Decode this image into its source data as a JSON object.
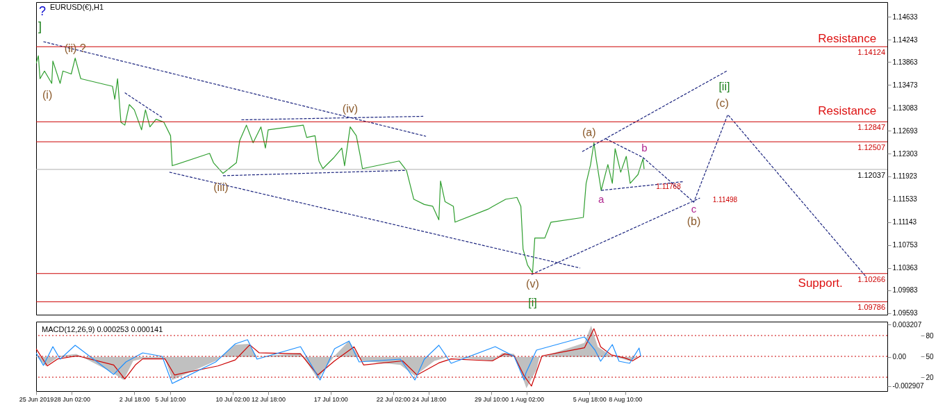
{
  "chart_data": [
    {
      "type": "line",
      "title": "EURUSD(€),H1",
      "xlim": [
        "2019-06-25T10:00",
        "2019-08-28T00:00"
      ],
      "ylim": [
        1.09566,
        1.14883
      ],
      "yticks": [
        1.14633,
        1.14243,
        1.13863,
        1.13473,
        1.13083,
        1.12693,
        1.12303,
        1.11923,
        1.11533,
        1.11143,
        1.10753,
        1.10363,
        1.09983,
        1.09593
      ],
      "tick_labels": "y",
      "grid": false,
      "series": [
        {
          "color": "#2e9e2e",
          "x": [
            "2019-06-25T10:00",
            "2019-06-25T14:00",
            "2019-06-25T17:00",
            "2019-06-26T01:00",
            "2019-06-26T14:00",
            "2019-06-26T16:00",
            "2019-06-27T05:00",
            "2019-06-27T10:00",
            "2019-06-28T01:00",
            "2019-06-28T08:00",
            "2019-06-28T18:00",
            "2019-07-01T03:00",
            "2019-07-01T07:00",
            "2019-07-01T12:00",
            "2019-07-01T18:00",
            "2019-07-02T01:00",
            "2019-07-02T09:00",
            "2019-07-02T18:00",
            "2019-07-03T07:00",
            "2019-07-03T14:00",
            "2019-07-03T22:00",
            "2019-07-04T09:00",
            "2019-07-04T23:00",
            "2019-07-05T11:00",
            "2019-07-05T14:00",
            "2019-07-08T09:00",
            "2019-07-08T16:00",
            "2019-07-09T09:00",
            "2019-07-10T09:00",
            "2019-07-10T15:00",
            "2019-07-11T03:00",
            "2019-07-11T15:00",
            "2019-07-12T05:00",
            "2019-07-12T13:00",
            "2019-07-12T18:00",
            "2019-07-15T09:00",
            "2019-07-15T15:00",
            "2019-07-16T06:00",
            "2019-07-16T13:00",
            "2019-07-16T20:00",
            "2019-07-17T15:00",
            "2019-07-18T06:00",
            "2019-07-18T11:00",
            "2019-07-18T21:00",
            "2019-07-19T08:00",
            "2019-07-19T15:00",
            "2019-07-19T19:00",
            "2019-07-22T13:00",
            "2019-07-23T02:00",
            "2019-07-23T15:00",
            "2019-07-24T10:00",
            "2019-07-25T01:00",
            "2019-07-25T12:00",
            "2019-07-25T15:00",
            "2019-07-25T23:00",
            "2019-07-26T14:00",
            "2019-07-26T17:00",
            "2019-07-29T04:00",
            "2019-07-29T13:00",
            "2019-07-30T12:00",
            "2019-07-31T08:00",
            "2019-07-31T15:00",
            "2019-07-31T19:00",
            "2019-08-01T03:00",
            "2019-08-01T12:00",
            "2019-08-01T16:00",
            "2019-08-02T10:00",
            "2019-08-02T21:00",
            "2019-08-05T07:00",
            "2019-08-05T12:00",
            "2019-08-05T20:00",
            "2019-08-06T02:00",
            "2019-08-06T06:00",
            "2019-08-06T15:00",
            "2019-08-07T03:00",
            "2019-08-07T11:00",
            "2019-08-07T16:00",
            "2019-08-08T02:00",
            "2019-08-08T12:00",
            "2019-08-08T19:00",
            "2019-08-09T09:00",
            "2019-08-09T18:00",
            "2019-08-09T20:00"
          ],
          "values": [
            1.1384,
            1.1397,
            1.1358,
            1.1371,
            1.135,
            1.1388,
            1.135,
            1.1371,
            1.1366,
            1.1393,
            1.1358,
            1.1345,
            1.1323,
            1.1358,
            1.1284,
            1.1279,
            1.1314,
            1.1305,
            1.1271,
            1.1305,
            1.1276,
            1.1289,
            1.1284,
            1.1261,
            1.121,
            1.1231,
            1.1215,
            1.1197,
            1.1215,
            1.1253,
            1.1279,
            1.1249,
            1.1276,
            1.124,
            1.1271,
            1.1279,
            1.1258,
            1.1261,
            1.1218,
            1.1205,
            1.1223,
            1.124,
            1.121,
            1.1276,
            1.1261,
            1.1227,
            1.1205,
            1.1218,
            1.1202,
            1.1153,
            1.1144,
            1.1141,
            1.1118,
            1.1184,
            1.1149,
            1.1141,
            1.1114,
            1.1136,
            1.1141,
            1.1153,
            1.1156,
            1.1141,
            1.1068,
            1.1041,
            1.1028,
            1.1087,
            1.1087,
            1.1114,
            1.1122,
            1.118,
            1.1212,
            1.1249,
            1.1222,
            1.1168,
            1.1212,
            1.118,
            1.1239,
            1.1199,
            1.1226,
            1.118,
            1.1195,
            1.1222,
            1.1204
          ]
        },
        {
          "type": "line",
          "line_style": "dashed",
          "color": "#1a237e",
          "x": [
            "2019-06-25T23:00",
            "2019-07-24T13:00"
          ],
          "values": [
            1.1421,
            1.126
          ]
        },
        {
          "type": "line",
          "line_style": "dashed",
          "color": "#1a237e",
          "x": [
            "2019-07-02T01:00",
            "2019-07-04T20:00"
          ],
          "values": [
            1.1334,
            1.1292
          ]
        },
        {
          "type": "line",
          "line_style": "dashed",
          "color": "#1a237e",
          "x": [
            "2019-07-05T09:00",
            "2019-08-05T01:00"
          ],
          "values": [
            1.1199,
            1.1036
          ]
        },
        {
          "type": "line",
          "line_style": "dashed",
          "color": "#1a237e",
          "x": [
            "2019-07-10T18:00",
            "2019-07-24T08:00"
          ],
          "values": [
            1.1288,
            1.1294
          ]
        },
        {
          "type": "line",
          "line_style": "dashed",
          "color": "#1a237e",
          "x": [
            "2019-07-09T09:00",
            "2019-07-22T23:00"
          ],
          "values": [
            1.1193,
            1.1202
          ]
        },
        {
          "type": "line",
          "line_style": "dashed",
          "color": "#1a237e",
          "x": [
            "2019-08-01T10:00",
            "2019-08-14T00:00"
          ],
          "values": [
            1.1025,
            1.1155
          ]
        },
        {
          "type": "line",
          "line_style": "dashed",
          "color": "#1a237e",
          "x": [
            "2019-08-05T05:00",
            "2019-08-16T00:00"
          ],
          "values": [
            1.1234,
            1.1371
          ]
        },
        {
          "type": "line",
          "line_style": "dashed",
          "color": "#1a237e",
          "x": [
            "2019-08-06T15:00",
            "2019-08-12T19:00"
          ],
          "values": [
            1.1168,
            1.1183
          ]
        },
        {
          "type": "line",
          "line_style": "dashed",
          "color": "#1a237e",
          "x": [
            "2019-08-06T23:00",
            "2019-08-09T18:00",
            "2019-08-13T13:00",
            "2019-08-16T02:00",
            "2019-08-26T10:00"
          ],
          "values": [
            1.1256,
            1.1224,
            1.1148,
            1.1297,
            1.1021
          ]
        }
      ],
      "ref_lines": [
        {
          "axis": "y",
          "value": 1.14124,
          "label": "1.14124",
          "color": "#cc0000"
        },
        {
          "axis": "y",
          "value": 1.12847,
          "label": "1.12847",
          "color": "#cc0000"
        },
        {
          "axis": "y",
          "value": 1.12507,
          "label": "1.12507",
          "color": "#cc0000"
        },
        {
          "axis": "y",
          "value": 1.12037,
          "label": "1.12037",
          "color": "#b0b0b0"
        },
        {
          "axis": "y",
          "value": 1.10266,
          "label": "1.10266",
          "color": "#cc0000"
        },
        {
          "axis": "y",
          "value": 1.09786,
          "label": "1.09786",
          "color": "#cc0000"
        }
      ],
      "annotations": [
        "?",
        "]",
        "(i)",
        {
          "text": "(ii) ?",
          "x": "2019-06-28T08:00",
          "y": 1.1393
        },
        {
          "text": "(iii)",
          "x": "2019-07-09T09:00",
          "y": 1.1197
        },
        {
          "text": "(iv)",
          "x": "2019-07-18T21:00",
          "y": 1.1276
        },
        {
          "text": "(v)",
          "x": "2019-08-01T12:00",
          "y": 1.1028
        },
        {
          "text": "[i]",
          "x": "2019-08-01T12:00",
          "y": 1.1028
        },
        {
          "text": "(a)",
          "x": "2019-08-06T02:00",
          "y": 1.1249
        },
        {
          "text": "a",
          "x": "2019-08-06T15:00",
          "y": 1.1168
        },
        {
          "text": "b",
          "x": "2019-08-09T18:00",
          "y": 1.1222
        },
        {
          "text": "c",
          "x": "2019-08-13T13:00",
          "y": 1.1148
        },
        {
          "text": "(b)",
          "x": "2019-08-13T13:00",
          "y": 1.1148
        },
        {
          "text": "(c)",
          "x": "2019-08-16T02:00",
          "y": 1.1297
        },
        {
          "text": "[ii]",
          "x": "2019-08-16T02:00",
          "y": 1.1297
        },
        {
          "text": "1.11768",
          "x": "2019-08-12T19:00",
          "y": 1.1183
        },
        {
          "text": "1.11498",
          "x": "2019-08-13T13:00",
          "y": 1.1148
        },
        {
          "text": "Resistance",
          "x": "2019-08-25T00:00",
          "y": 1.14124
        },
        {
          "text": "Resistance",
          "x": "2019-08-25T00:00",
          "y": 1.12847
        },
        {
          "text": "Support.",
          "x": "2019-08-23T00:00",
          "y": 1.10266
        }
      ]
    },
    {
      "type": "line",
      "title": "MACD(12,26,9) 0.000253 0.000141",
      "xlim": [
        "2019-06-25T10:00",
        "2019-08-28T00:00"
      ],
      "ylim": [
        -0.0034,
        0.0035
      ],
      "yticks": [
        0.003207,
        {
          "value": 0,
          "label": "0.00"
        },
        -0.002907
      ],
      "y2lim": [
        0,
        100
      ],
      "y2ticks": [
        80,
        50,
        20
      ],
      "grid": false,
      "xticks": [
        {
          "value": "2019-06-25T10:00",
          "label": "25 Jun 2019"
        },
        {
          "value": "2019-06-28T02:00",
          "label": "28 Jun 02:00"
        },
        {
          "value": "2019-07-02T18:00",
          "label": "2 Jul 18:00"
        },
        {
          "value": "2019-07-05T10:00",
          "label": "5 Jul 10:00"
        },
        {
          "value": "2019-07-10T02:00",
          "label": "10 Jul 02:00"
        },
        {
          "value": "2019-07-12T18:00",
          "label": "12 Jul 18:00"
        },
        {
          "value": "2019-07-17T10:00",
          "label": "17 Jul 10:00"
        },
        {
          "value": "2019-07-22T02:00",
          "label": "22 Jul 02:00"
        },
        {
          "value": "2019-07-24T18:00",
          "label": "24 Jul 18:00"
        },
        {
          "value": "2019-07-29T10:00",
          "label": "29 Jul 10:00"
        },
        {
          "value": "2019-08-01T02:00",
          "label": "1 Aug 02:00"
        },
        {
          "value": "2019-08-05T18:00",
          "label": "5 Aug 18:00"
        },
        {
          "value": "2019-08-08T10:00",
          "label": "8 Aug 10:00"
        }
      ],
      "series": [
        {
          "type": "area",
          "color": "#c0c0c0",
          "x": [
            "2019-06-25T10:00",
            "2019-06-26T03:00",
            "2019-06-27T05:00",
            "2019-06-28T10:00",
            "2019-07-01T01:00",
            "2019-07-01T23:00",
            "2019-07-02T16:00",
            "2019-07-03T09:00",
            "2019-07-05T01:00",
            "2019-07-05T14:00",
            "2019-07-08T20:00",
            "2019-07-10T07:00",
            "2019-07-11T07:00",
            "2019-07-11T22:00",
            "2019-07-15T04:00",
            "2019-07-16T11:00",
            "2019-07-17T17:00",
            "2019-07-18T19:00",
            "2019-07-19T17:00",
            "2019-07-22T15:00",
            "2019-07-23T17:00",
            "2019-07-25T04:00",
            "2019-07-26T06:00",
            "2019-07-29T12:00",
            "2019-07-30T06:00",
            "2019-07-31T03:00",
            "2019-08-01T01:00",
            "2019-08-01T19:00",
            "2019-08-02T00:00",
            "2019-08-05T09:00",
            "2019-08-05T21:00",
            "2019-08-06T09:00",
            "2019-08-07T09:00",
            "2019-08-08T18:00",
            "2019-08-09T14:00"
          ],
          "values": [
            0.0001,
            -0.0009,
            0.0001,
            0.0003,
            -0.0015,
            -0.0023,
            -0.0004,
            -0.0002,
            -0.0002,
            -0.0023,
            -0.0004,
            0.0012,
            0.0013,
            0.0,
            0.0004,
            -0.0022,
            0.0001,
            0.0016,
            -0.0004,
            -0.0008,
            -0.0019,
            -0.0004,
            0.0,
            -0.0004,
            0.0004,
            0.0003,
            -0.0031,
            -0.0013,
            -0.0001,
            0.0014,
            0.0031,
            0.001,
            0.0001,
            -0.0004,
            0.0001
          ]
        },
        {
          "type": "line",
          "color": "#cc0000",
          "x": [
            "2019-06-25T10:00",
            "2019-06-26T06:00",
            "2019-06-27T01:00",
            "2019-06-28T12:00",
            "2019-07-01T05:00",
            "2019-07-02T01:00",
            "2019-07-02T20:00",
            "2019-07-03T09:00",
            "2019-07-05T01:00",
            "2019-07-05T18:00",
            "2019-07-09T00:00",
            "2019-07-10T07:00",
            "2019-07-11T09:00",
            "2019-07-12T02:00",
            "2019-07-15T04:00",
            "2019-07-16T11:00",
            "2019-07-17T17:00",
            "2019-07-19T04:00",
            "2019-07-19T21:00",
            "2019-07-22T19:00",
            "2019-07-23T21:00",
            "2019-07-25T12:00",
            "2019-07-26T10:00",
            "2019-07-29T12:00",
            "2019-07-30T10:00",
            "2019-07-31T03:00",
            "2019-07-31T21:00",
            "2019-08-01T10:00",
            "2019-08-02T05:00",
            "2019-08-05T09:00",
            "2019-08-06T02:00",
            "2019-08-06T14:00",
            "2019-08-07T09:00",
            "2019-08-08T09:00",
            "2019-08-08T23:00",
            "2019-08-09T14:00"
          ],
          "values": [
            0.0008,
            -0.0009,
            -0.0002,
            0.0001,
            -0.0008,
            -0.0022,
            -0.0008,
            -0.0002,
            -0.0002,
            -0.0018,
            -0.0009,
            -0.0003,
            0.0012,
            0.0004,
            0.0003,
            -0.0018,
            -0.0004,
            0.001,
            -0.0008,
            -0.0004,
            -0.0018,
            -0.0006,
            -0.0002,
            -0.0004,
            0.0003,
            0.0001,
            -0.0019,
            -0.0029,
            0.0001,
            0.0009,
            0.0028,
            0.001,
            0.0002,
            -0.0001,
            -0.0004,
            0.0001
          ]
        },
        {
          "type": "line",
          "axis": "y2",
          "color": "#1e90ff",
          "x": [
            "2019-06-25T10:00",
            "2019-06-25T23:00",
            "2019-06-26T16:00",
            "2019-06-27T05:00",
            "2019-06-28T08:00",
            "2019-07-01T05:00",
            "2019-07-02T03:00",
            "2019-07-03T09:00",
            "2019-07-04T20:00",
            "2019-07-05T14:00",
            "2019-07-08T20:00",
            "2019-07-10T07:00",
            "2019-07-11T05:00",
            "2019-07-11T22:00",
            "2019-07-15T04:00",
            "2019-07-16T15:00",
            "2019-07-17T17:00",
            "2019-07-18T19:00",
            "2019-07-19T13:00",
            "2019-07-22T15:00",
            "2019-07-23T17:00",
            "2019-07-24T10:00",
            "2019-07-25T12:00",
            "2019-07-26T10:00",
            "2019-07-29T17:00",
            "2019-07-31T03:00",
            "2019-07-31T21:00",
            "2019-08-01T00:00",
            "2019-08-01T19:00",
            "2019-08-05T09:00",
            "2019-08-06T04:00",
            "2019-08-06T14:00",
            "2019-08-07T11:00",
            "2019-08-07T23:00",
            "2019-08-08T18:00",
            "2019-08-09T11:00",
            "2019-08-09T14:00"
          ],
          "values": [
            55,
            37,
            64,
            46,
            66,
            24,
            42,
            55,
            50,
            11,
            42,
            68,
            74,
            46,
            64,
            16,
            61,
            72,
            42,
            46,
            16,
            46,
            66,
            40,
            64,
            50,
            16,
            26,
            59,
            78,
            59,
            43,
            67,
            43,
            40,
            62,
            50
          ]
        }
      ],
      "ref_lines": [
        {
          "axis": "y2",
          "value": 80,
          "color": "#cc0000",
          "line_style": "dotted"
        },
        {
          "axis": "y2",
          "value": 50,
          "color": "#cc0000",
          "line_style": "dotted"
        },
        {
          "axis": "y2",
          "value": 20,
          "color": "#cc0000",
          "line_style": "dotted"
        }
      ]
    }
  ]
}
